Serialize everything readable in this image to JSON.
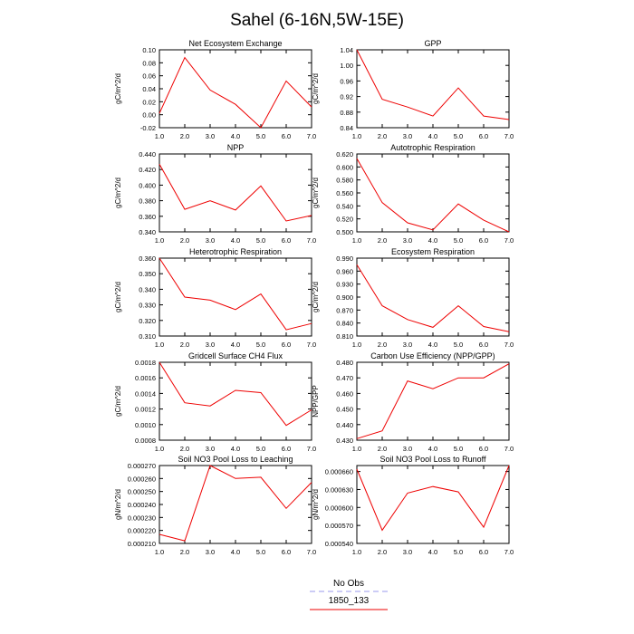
{
  "title": "Sahel (6-16N,5W-15E)",
  "legend": {
    "entries": [
      {
        "label": "No Obs",
        "color": "#9999ee",
        "dash": true
      },
      {
        "label": "1850_133",
        "color": "#ee0000",
        "dash": false
      }
    ]
  },
  "chart_data": [
    {
      "type": "line",
      "title": "Net Ecosystem Exchange",
      "ylabel": "gC/m^2/d",
      "x": [
        1,
        2,
        3,
        4,
        5,
        6,
        7
      ],
      "xlim": [
        1,
        7
      ],
      "xticks": [
        "1.0",
        "2.0",
        "3.0",
        "4.0",
        "5.0",
        "6.0",
        "7.0"
      ],
      "ylim": [
        -0.02,
        0.1
      ],
      "yticks": [
        "-0.02",
        "0.00",
        "0.02",
        "0.04",
        "0.06",
        "0.08",
        "0.10"
      ],
      "series": [
        {
          "color": "#ee0000",
          "values": [
            0.002,
            0.088,
            0.038,
            0.016,
            -0.02,
            0.052,
            0.012
          ]
        }
      ]
    },
    {
      "type": "line",
      "title": "GPP",
      "ylabel": "gC/m^2/d",
      "x": [
        1,
        2,
        3,
        4,
        5,
        6,
        7
      ],
      "xlim": [
        1,
        7
      ],
      "xticks": [
        "1.0",
        "2.0",
        "3.0",
        "4.0",
        "5.0",
        "6.0",
        "7.0"
      ],
      "ylim": [
        0.84,
        1.04
      ],
      "yticks": [
        "0.84",
        "0.88",
        "0.92",
        "0.96",
        "1.00",
        "1.04"
      ],
      "series": [
        {
          "color": "#ee0000",
          "values": [
            1.04,
            0.913,
            0.893,
            0.87,
            0.942,
            0.87,
            0.861
          ]
        }
      ]
    },
    {
      "type": "line",
      "title": "NPP",
      "ylabel": "gC/m^2/d",
      "x": [
        1,
        2,
        3,
        4,
        5,
        6,
        7
      ],
      "xlim": [
        1,
        7
      ],
      "xticks": [
        "1.0",
        "2.0",
        "3.0",
        "4.0",
        "5.0",
        "6.0",
        "7.0"
      ],
      "ylim": [
        0.34,
        0.44
      ],
      "yticks": [
        "0.340",
        "0.360",
        "0.380",
        "0.400",
        "0.420",
        "0.440"
      ],
      "series": [
        {
          "color": "#ee0000",
          "values": [
            0.427,
            0.369,
            0.38,
            0.368,
            0.399,
            0.354,
            0.361
          ]
        }
      ]
    },
    {
      "type": "line",
      "title": "Autotrophic Respiration",
      "ylabel": "gC/m^2/d",
      "x": [
        1,
        2,
        3,
        4,
        5,
        6,
        7
      ],
      "xlim": [
        1,
        7
      ],
      "xticks": [
        "1.0",
        "2.0",
        "3.0",
        "4.0",
        "5.0",
        "6.0",
        "7.0"
      ],
      "ylim": [
        0.5,
        0.62
      ],
      "yticks": [
        "0.500",
        "0.520",
        "0.540",
        "0.560",
        "0.580",
        "0.600",
        "0.620"
      ],
      "series": [
        {
          "color": "#ee0000",
          "values": [
            0.613,
            0.545,
            0.514,
            0.503,
            0.543,
            0.518,
            0.5
          ]
        }
      ]
    },
    {
      "type": "line",
      "title": "Heterotrophic Respiration",
      "ylabel": "gC/m^2/d",
      "x": [
        1,
        2,
        3,
        4,
        5,
        6,
        7
      ],
      "xlim": [
        1,
        7
      ],
      "xticks": [
        "1.0",
        "2.0",
        "3.0",
        "4.0",
        "5.0",
        "6.0",
        "7.0"
      ],
      "ylim": [
        0.31,
        0.36
      ],
      "yticks": [
        "0.310",
        "0.320",
        "0.330",
        "0.340",
        "0.350",
        "0.360"
      ],
      "series": [
        {
          "color": "#ee0000",
          "values": [
            0.36,
            0.335,
            0.333,
            0.327,
            0.337,
            0.314,
            0.318
          ]
        }
      ]
    },
    {
      "type": "line",
      "title": "Ecosystem Respiration",
      "ylabel": "gC/m^2/d",
      "x": [
        1,
        2,
        3,
        4,
        5,
        6,
        7
      ],
      "xlim": [
        1,
        7
      ],
      "xticks": [
        "1.0",
        "2.0",
        "3.0",
        "4.0",
        "5.0",
        "6.0",
        "7.0"
      ],
      "ylim": [
        0.81,
        0.99
      ],
      "yticks": [
        "0.810",
        "0.840",
        "0.870",
        "0.900",
        "0.930",
        "0.960",
        "0.990"
      ],
      "series": [
        {
          "color": "#ee0000",
          "values": [
            0.975,
            0.88,
            0.848,
            0.83,
            0.88,
            0.832,
            0.82
          ]
        }
      ]
    },
    {
      "type": "line",
      "title": "Gridcell Surface CH4 Flux",
      "ylabel": "gC/m^2/d",
      "x": [
        1,
        2,
        3,
        4,
        5,
        6,
        7
      ],
      "xlim": [
        1,
        7
      ],
      "xticks": [
        "1.0",
        "2.0",
        "3.0",
        "4.0",
        "5.0",
        "6.0",
        "7.0"
      ],
      "ylim": [
        0.0008,
        0.0018
      ],
      "yticks": [
        "0.0008",
        "0.0010",
        "0.0012",
        "0.0014",
        "0.0016",
        "0.0018"
      ],
      "series": [
        {
          "color": "#ee0000",
          "values": [
            0.0018,
            0.00128,
            0.00124,
            0.00144,
            0.00141,
            0.00099,
            0.00119
          ]
        }
      ]
    },
    {
      "type": "line",
      "title": "Carbon Use Efficiency (NPP/GPP)",
      "ylabel": "NPP/GPP",
      "x": [
        1,
        2,
        3,
        4,
        5,
        6,
        7
      ],
      "xlim": [
        1,
        7
      ],
      "xticks": [
        "1.0",
        "2.0",
        "3.0",
        "4.0",
        "5.0",
        "6.0",
        "7.0"
      ],
      "ylim": [
        0.43,
        0.48
      ],
      "yticks": [
        "0.430",
        "0.440",
        "0.450",
        "0.460",
        "0.470",
        "0.480"
      ],
      "series": [
        {
          "color": "#ee0000",
          "values": [
            0.431,
            0.436,
            0.468,
            0.463,
            0.47,
            0.47,
            0.479
          ]
        }
      ]
    },
    {
      "type": "line",
      "title": "Soil NO3 Pool Loss to Leaching",
      "ylabel": "gN/m^2/d",
      "x": [
        1,
        2,
        3,
        4,
        5,
        6,
        7
      ],
      "xlim": [
        1,
        7
      ],
      "xticks": [
        "1.0",
        "2.0",
        "3.0",
        "4.0",
        "5.0",
        "6.0",
        "7.0"
      ],
      "ylim": [
        0.00021,
        0.00027
      ],
      "yticks": [
        "0.000210",
        "0.000220",
        "0.000230",
        "0.000240",
        "0.000250",
        "0.000260",
        "0.000270"
      ],
      "series": [
        {
          "color": "#ee0000",
          "values": [
            0.000217,
            0.000212,
            0.00027,
            0.00026,
            0.000261,
            0.000237,
            0.000257
          ]
        }
      ]
    },
    {
      "type": "line",
      "title": "Soil NO3 Pool Loss to Runoff",
      "ylabel": "gN/m^2/d",
      "x": [
        1,
        2,
        3,
        4,
        5,
        6,
        7
      ],
      "xlim": [
        1,
        7
      ],
      "xticks": [
        "1.0",
        "2.0",
        "3.0",
        "4.0",
        "5.0",
        "6.0",
        "7.0"
      ],
      "ylim": [
        0.00054,
        0.00067
      ],
      "yticks": [
        "0.000540",
        "0.000570",
        "0.000600",
        "0.000630",
        "0.000660"
      ],
      "series": [
        {
          "color": "#ee0000",
          "values": [
            0.000664,
            0.000562,
            0.000624,
            0.000635,
            0.000626,
            0.000567,
            0.00067
          ]
        }
      ]
    }
  ]
}
